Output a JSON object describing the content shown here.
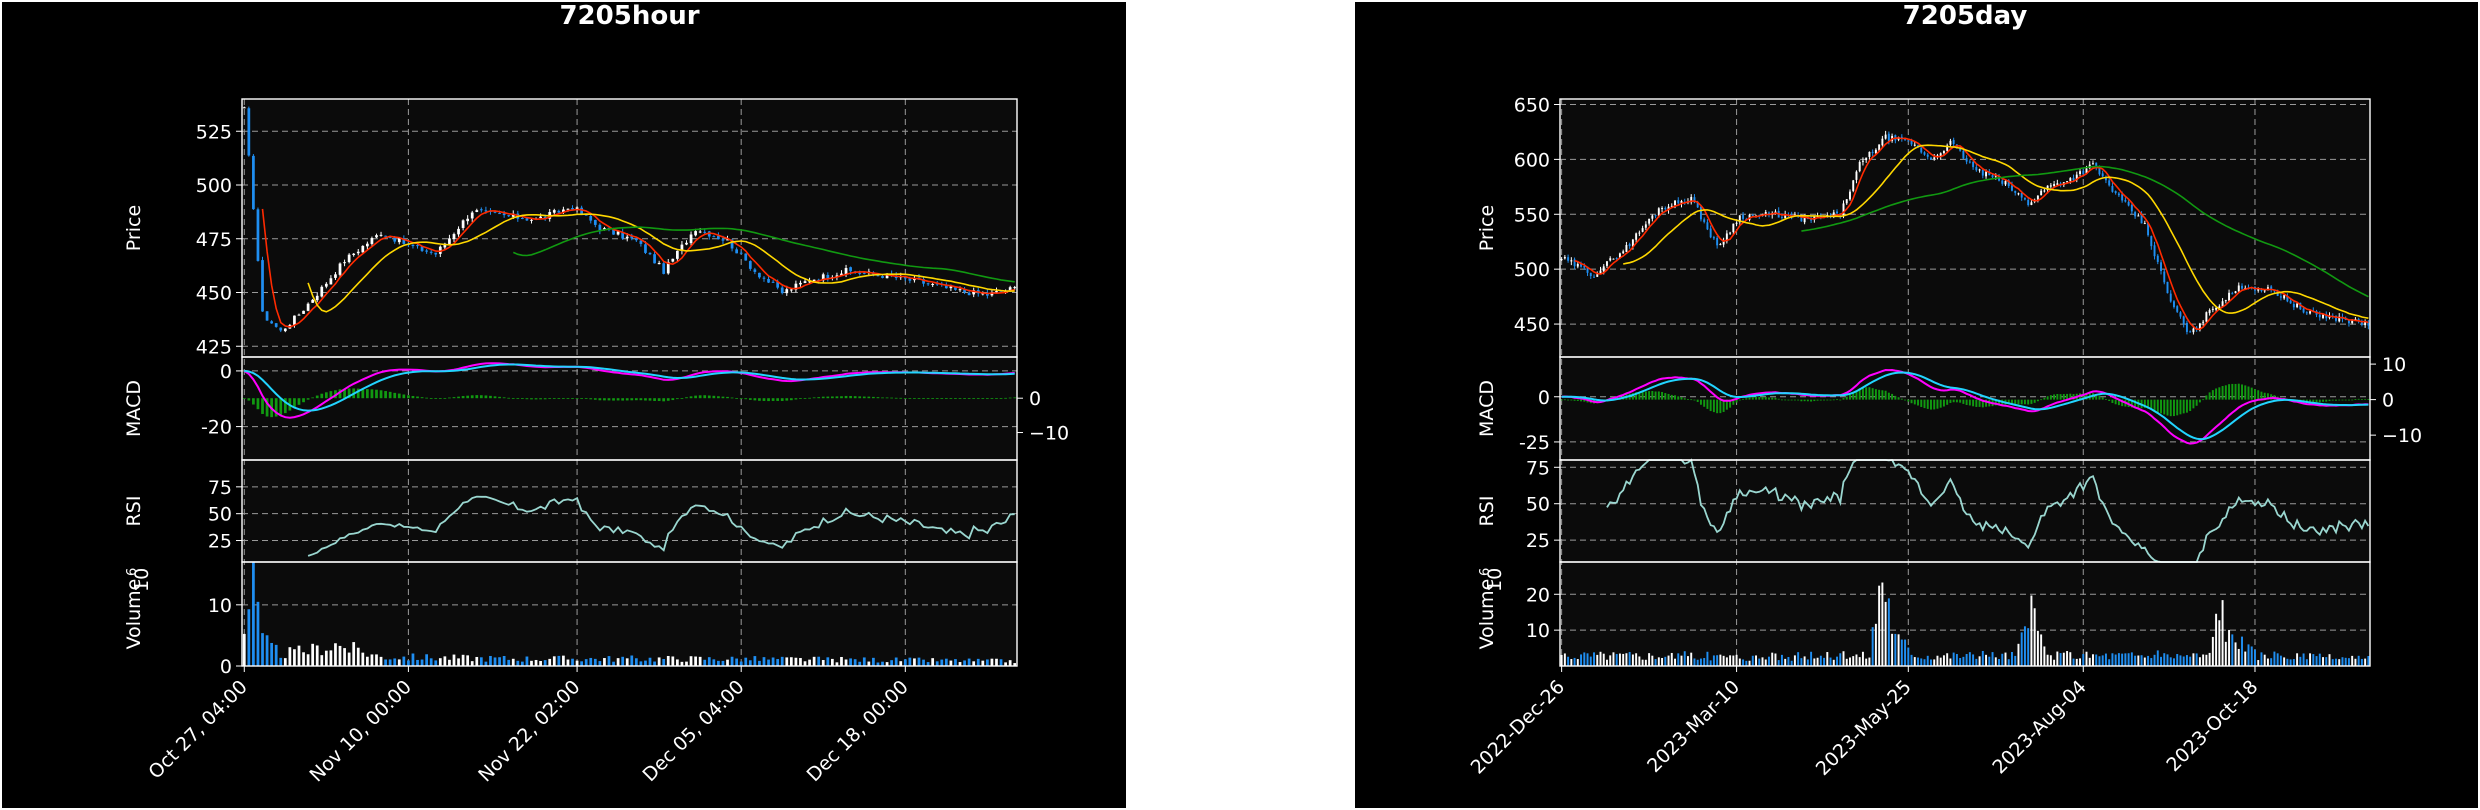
{
  "colors": {
    "background": "#000000",
    "axes_bg": "#0b0b0b",
    "text": "#ffffff",
    "grid": "#9a9a9a",
    "up": "#ffffff",
    "down": "#1f8ef1",
    "ma_short": "#ff2a00",
    "ma_mid": "#ffd800",
    "ma_long": "#119911",
    "macd": "#ff00ff",
    "signal": "#22d4ff",
    "hist": "#119911",
    "rsi": "#9ad7d0"
  },
  "chart_data": [
    {
      "type": "candlestick",
      "title": "7205hour",
      "panels": [
        "price",
        "macd",
        "rsi",
        "volume"
      ],
      "price_label": "Price",
      "macd_label": "MACD",
      "rsi_label": "RSI",
      "volume_label": "Volume",
      "volume_exponent": "10^6",
      "volume_base": "10",
      "volume_exp": "6",
      "x_ticks": [
        "Oct 27, 04:00",
        "Nov 10, 00:00",
        "Nov 22, 02:00",
        "Dec 05, 04:00",
        "Dec 18, 00:00"
      ],
      "price_ylim": [
        420,
        540
      ],
      "price_ticks": [
        425,
        450,
        475,
        500,
        525
      ],
      "macd_ylim": [
        -32,
        5
      ],
      "macd_ticks": [
        0,
        -20
      ],
      "macd_hist_ylim": [
        -18,
        12
      ],
      "macd_hist_ticks": [
        0,
        -10
      ],
      "rsi_ylim": [
        5,
        100
      ],
      "rsi_ticks": [
        25,
        50,
        75
      ],
      "volume_ylim": [
        0,
        17
      ],
      "volume_ticks": [
        0,
        10
      ],
      "grid": true,
      "n_bars": 170,
      "ma_windows": [
        5,
        15,
        60
      ],
      "anchors": {
        "close": [
          [
            0,
            535
          ],
          [
            2,
            490
          ],
          [
            4,
            440
          ],
          [
            8,
            432
          ],
          [
            12,
            440
          ],
          [
            17,
            452
          ],
          [
            22,
            465
          ],
          [
            30,
            478
          ],
          [
            36,
            472
          ],
          [
            42,
            468
          ],
          [
            50,
            488
          ],
          [
            56,
            486
          ],
          [
            64,
            484
          ],
          [
            72,
            490
          ],
          [
            78,
            480
          ],
          [
            86,
            474
          ],
          [
            92,
            460
          ],
          [
            99,
            480
          ],
          [
            106,
            474
          ],
          [
            112,
            460
          ],
          [
            118,
            450
          ],
          [
            124,
            456
          ],
          [
            132,
            460
          ],
          [
            140,
            458
          ],
          [
            148,
            455
          ],
          [
            156,
            451
          ],
          [
            163,
            449
          ],
          [
            169,
            452
          ]
        ],
        "volume": [
          [
            0,
            6
          ],
          [
            2,
            14
          ],
          [
            4,
            4
          ],
          [
            8,
            2
          ],
          [
            14,
            2.5
          ],
          [
            20,
            3.5
          ],
          [
            30,
            1.5
          ],
          [
            60,
            1.2
          ],
          [
            100,
            1.2
          ],
          [
            140,
            1.0
          ],
          [
            169,
            0.8
          ]
        ]
      }
    },
    {
      "type": "candlestick",
      "title": "7205day",
      "panels": [
        "price",
        "macd",
        "rsi",
        "volume"
      ],
      "price_label": "Price",
      "macd_label": "MACD",
      "rsi_label": "RSI",
      "volume_label": "Volume",
      "volume_exponent": "10^6",
      "volume_base": "10",
      "volume_exp": "6",
      "x_ticks": [
        "2022-Dec-26",
        "2023-Mar-10",
        "2023-May-25",
        "2023-Aug-04",
        "2023-Oct-18"
      ],
      "price_ylim": [
        420,
        655
      ],
      "price_ticks": [
        450,
        500,
        550,
        600,
        650
      ],
      "macd_ylim": [
        -35,
        22
      ],
      "macd_ticks": [
        0,
        -25
      ],
      "macd_hist_ylim": [
        -17,
        12
      ],
      "macd_hist_ticks": [
        10,
        0,
        -10
      ],
      "rsi_ylim": [
        10,
        80
      ],
      "rsi_ticks": [
        25,
        50,
        75
      ],
      "volume_ylim": [
        0,
        29
      ],
      "volume_ticks": [
        10,
        20
      ],
      "grid": true,
      "n_bars": 250,
      "ma_windows": [
        5,
        20,
        75
      ],
      "anchors": {
        "close": [
          [
            0,
            510
          ],
          [
            10,
            495
          ],
          [
            20,
            520
          ],
          [
            30,
            555
          ],
          [
            40,
            565
          ],
          [
            48,
            520
          ],
          [
            55,
            548
          ],
          [
            66,
            550
          ],
          [
            76,
            545
          ],
          [
            86,
            550
          ],
          [
            92,
            595
          ],
          [
            100,
            620
          ],
          [
            108,
            615
          ],
          [
            114,
            600
          ],
          [
            120,
            615
          ],
          [
            128,
            590
          ],
          [
            136,
            580
          ],
          [
            144,
            560
          ],
          [
            150,
            575
          ],
          [
            157,
            582
          ],
          [
            164,
            595
          ],
          [
            172,
            565
          ],
          [
            180,
            540
          ],
          [
            188,
            470
          ],
          [
            194,
            440
          ],
          [
            200,
            462
          ],
          [
            210,
            485
          ],
          [
            220,
            480
          ],
          [
            230,
            460
          ],
          [
            240,
            455
          ],
          [
            249,
            450
          ]
        ],
        "volume": [
          [
            0,
            3
          ],
          [
            30,
            3
          ],
          [
            60,
            2.5
          ],
          [
            95,
            3
          ],
          [
            99,
            28
          ],
          [
            103,
            8
          ],
          [
            110,
            3
          ],
          [
            140,
            3
          ],
          [
            145,
            14
          ],
          [
            150,
            3
          ],
          [
            200,
            3
          ],
          [
            203,
            20
          ],
          [
            206,
            8
          ],
          [
            215,
            3
          ],
          [
            249,
            2
          ]
        ]
      }
    }
  ]
}
